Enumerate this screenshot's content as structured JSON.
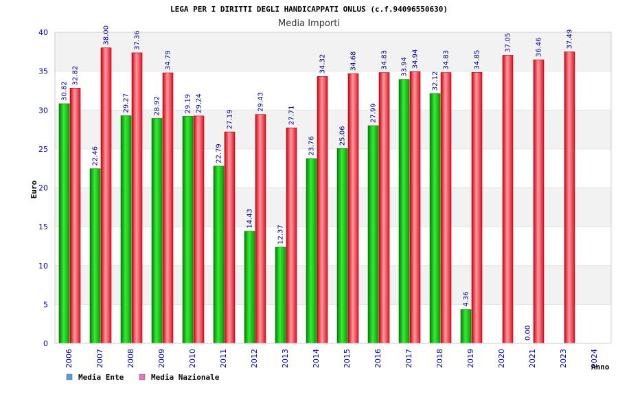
{
  "chart_data": {
    "type": "bar",
    "title": "LEGA PER I DIRITTI DEGLI HANDICAPPATI ONLUS (c.f.94096550630)",
    "subtitle": "Media Importi",
    "xlabel": "Anno",
    "ylabel": "Euro",
    "ylim": [
      0,
      40
    ],
    "yticks": [
      0,
      5,
      10,
      15,
      20,
      25,
      30,
      35,
      40
    ],
    "grid": true,
    "legend_position": "bottom-left",
    "categories": [
      "2006",
      "2007",
      "2008",
      "2009",
      "2010",
      "2011",
      "2012",
      "2013",
      "2014",
      "2015",
      "2016",
      "2017",
      "2018",
      "2019",
      "2020",
      "2021",
      "2023",
      "2024"
    ],
    "series": [
      {
        "name": "Media Ente",
        "values": [
          30.82,
          22.46,
          29.27,
          28.92,
          29.19,
          22.79,
          14.43,
          12.37,
          23.76,
          25.06,
          27.99,
          33.94,
          32.12,
          4.36,
          null,
          0.0,
          null,
          null
        ],
        "labels": [
          "30.82",
          "22.46",
          "29.27",
          "28.92",
          "29.19",
          "22.79",
          "14.43",
          "12.37",
          "23.76",
          "25.06",
          "27.99",
          "33.94",
          "32.12",
          "4.36",
          "",
          "0.00",
          "",
          ""
        ],
        "bar_color": "#11aa11",
        "legend_color": "#5b9bd5"
      },
      {
        "name": "Media Nazionale",
        "values": [
          32.82,
          38.0,
          37.36,
          34.79,
          29.24,
          27.19,
          29.43,
          27.71,
          34.32,
          34.68,
          34.83,
          34.94,
          34.83,
          34.85,
          37.05,
          36.46,
          37.49,
          null
        ],
        "labels": [
          "32.82",
          "38.00",
          "37.36",
          "34.79",
          "29.24",
          "27.19",
          "29.43",
          "27.71",
          "34.32",
          "34.68",
          "34.83",
          "34.94",
          "34.83",
          "34.85",
          "37.05",
          "36.46",
          "37.49",
          ""
        ],
        "bar_color": "#dd1122",
        "legend_color": "#e377c2"
      }
    ],
    "colors": {
      "tick_text": "#0000aa",
      "band_gray": "#f2f2f2",
      "band_white": "#ffffff"
    }
  }
}
